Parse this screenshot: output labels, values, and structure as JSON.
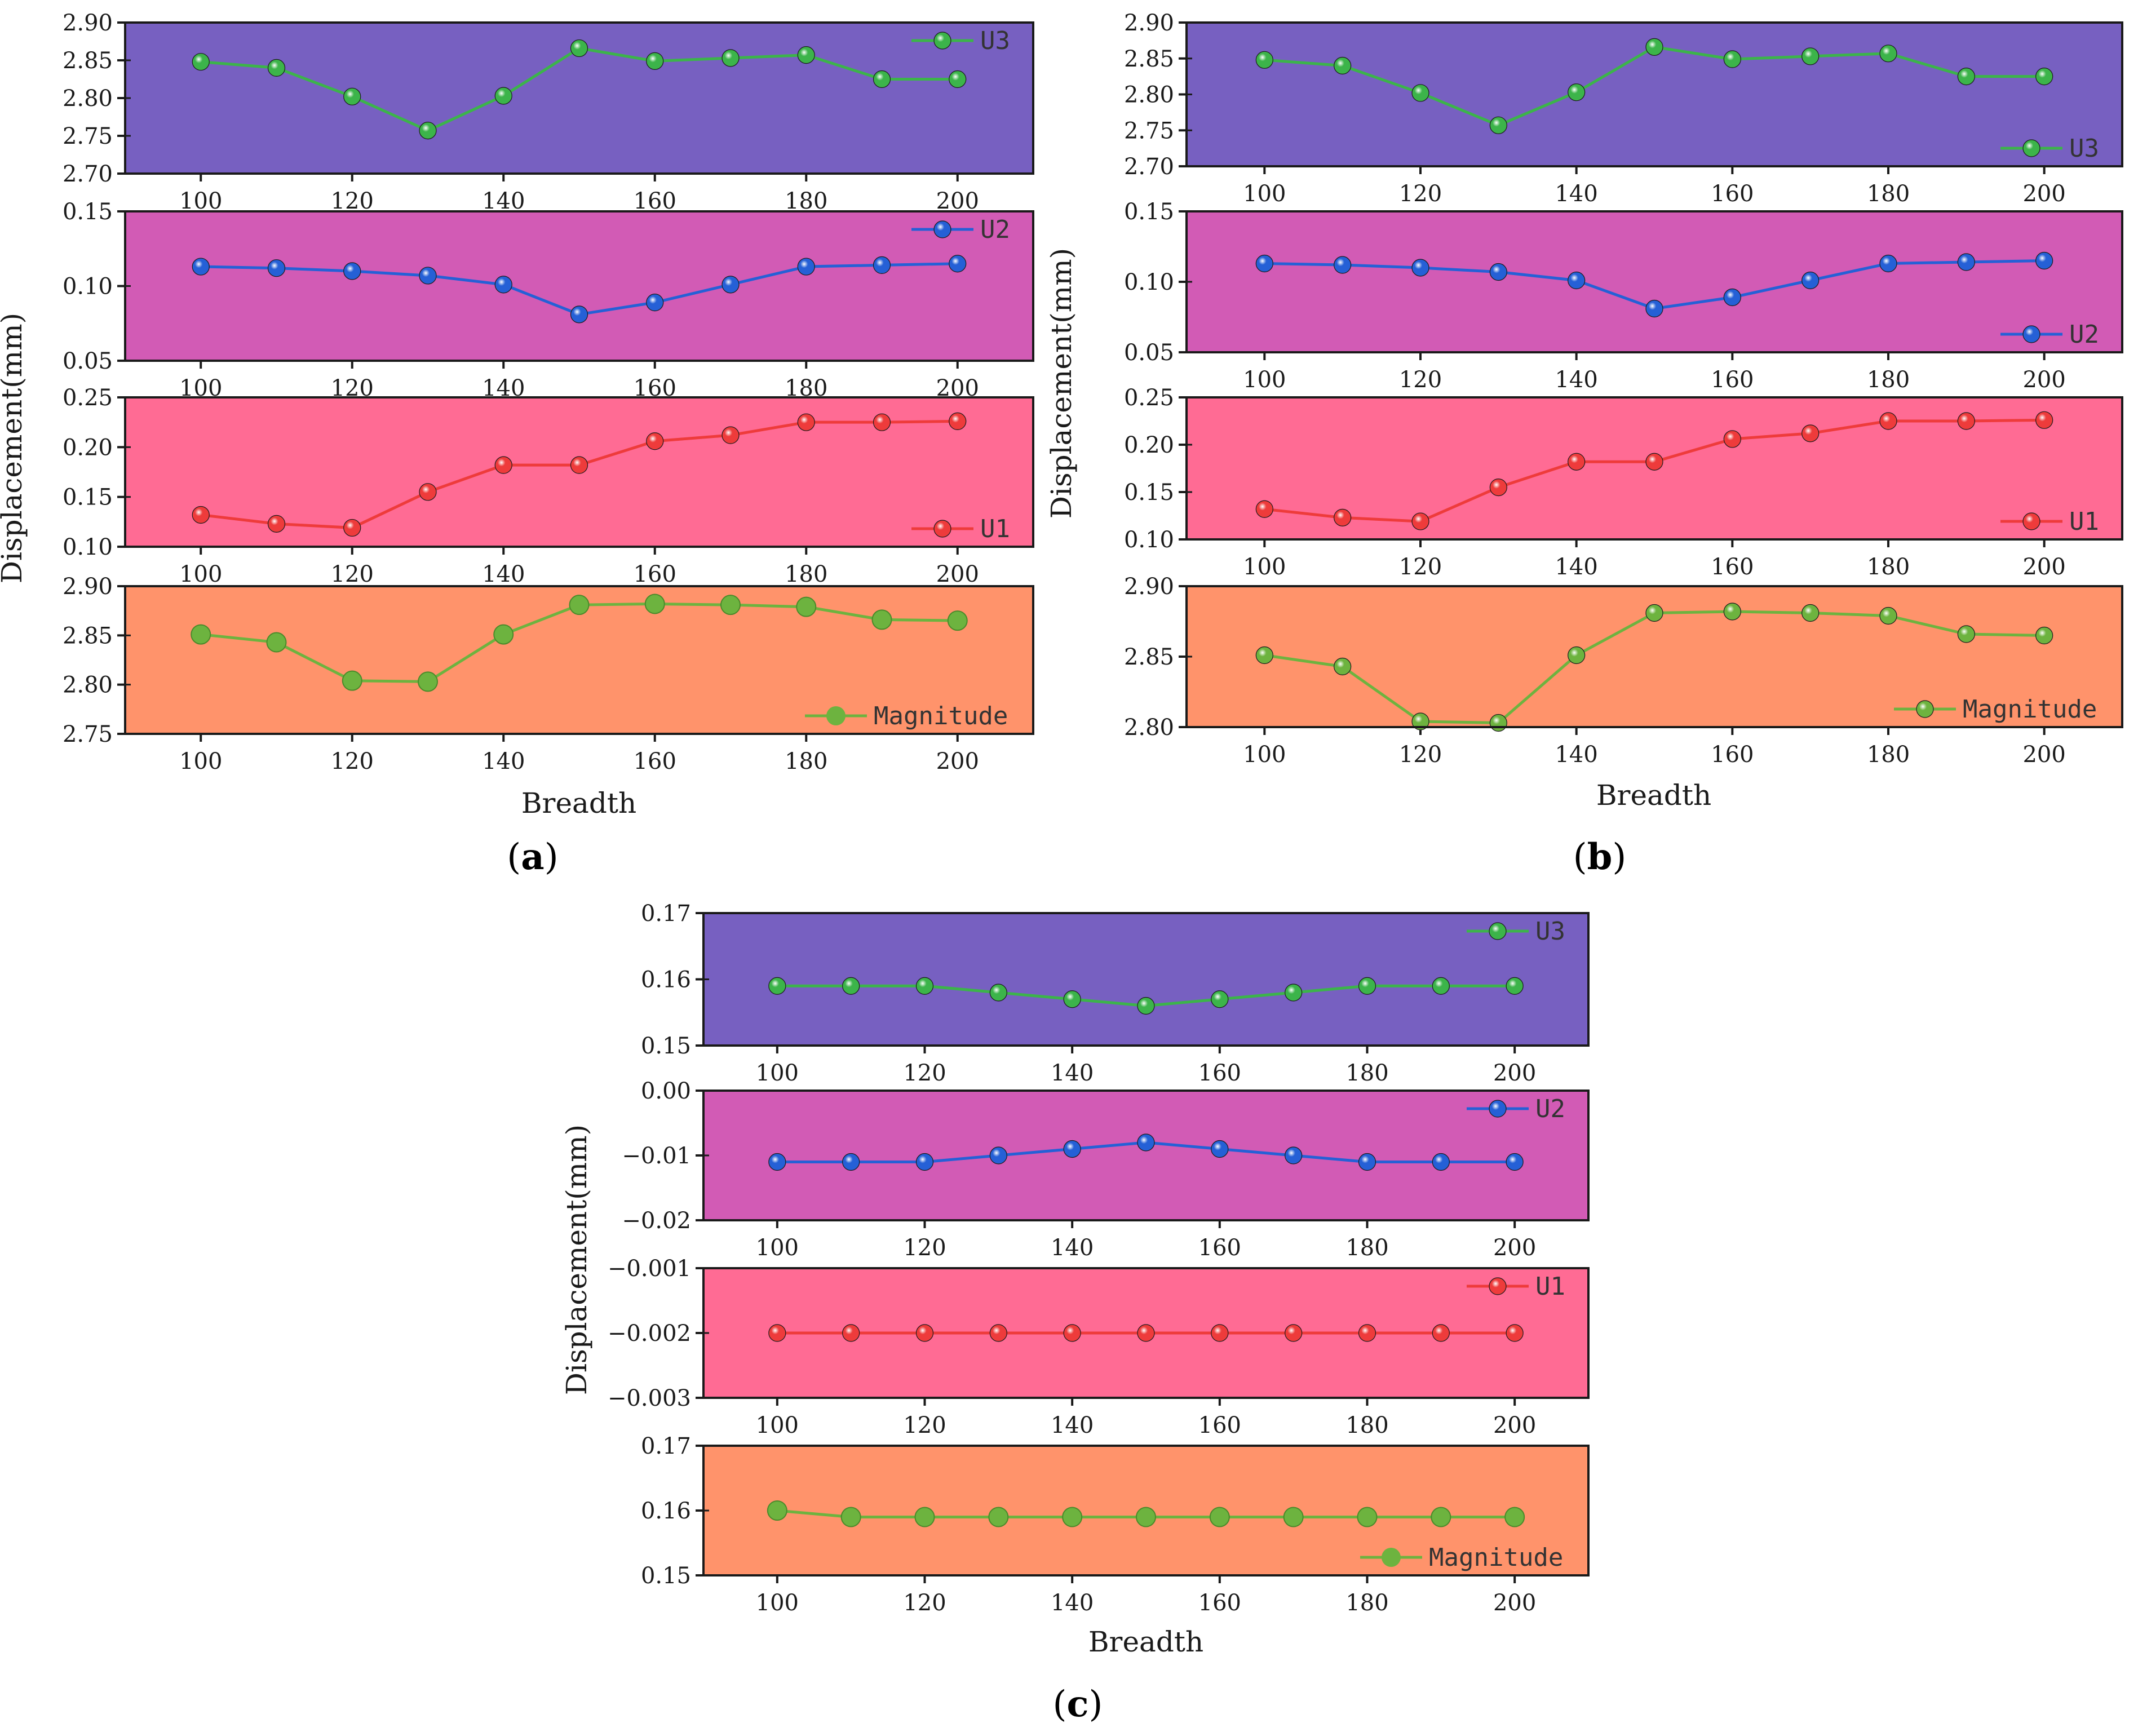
{
  "figure": {
    "x_title": "Breadth",
    "y_title": "Displacement(mm)"
  },
  "chart_data": [
    {
      "id": "a",
      "label": "a",
      "type": "line",
      "xlabel": "Breadth",
      "ylabel": "Displacement(mm)",
      "x": [
        100,
        110,
        120,
        130,
        140,
        150,
        160,
        170,
        180,
        190,
        200
      ],
      "xlim": [
        90,
        210
      ],
      "xticks": [
        100,
        120,
        140,
        160,
        180,
        200
      ],
      "panels": [
        {
          "series_name": "U3",
          "values": [
            2.848,
            2.84,
            2.802,
            2.757,
            2.803,
            2.866,
            2.849,
            2.853,
            2.857,
            2.825,
            2.825
          ],
          "ylim": [
            2.7,
            2.9
          ],
          "yticks": [
            "2.70",
            "2.75",
            "2.80",
            "2.85",
            "2.90"
          ],
          "legend_position": "top-right",
          "marker": "sphere"
        },
        {
          "series_name": "U2",
          "values": [
            0.113,
            0.112,
            0.11,
            0.107,
            0.101,
            0.081,
            0.089,
            0.101,
            0.113,
            0.114,
            0.115
          ],
          "ylim": [
            0.05,
            0.15
          ],
          "yticks": [
            "0.05",
            "0.10",
            "0.15"
          ],
          "legend_position": "top-right",
          "marker": "sphere"
        },
        {
          "series_name": "U1",
          "values": [
            0.132,
            0.123,
            0.119,
            0.155,
            0.182,
            0.182,
            0.206,
            0.212,
            0.225,
            0.225,
            0.226
          ],
          "ylim": [
            0.1,
            0.25
          ],
          "yticks": [
            "0.10",
            "0.15",
            "0.20",
            "0.25"
          ],
          "legend_position": "bottom-right",
          "marker": "sphere"
        },
        {
          "series_name": "Magnitude",
          "values": [
            2.851,
            2.843,
            2.804,
            2.803,
            2.851,
            2.881,
            2.882,
            2.881,
            2.879,
            2.866,
            2.865
          ],
          "ylim": [
            2.75,
            2.9
          ],
          "yticks": [
            "2.75",
            "2.80",
            "2.85",
            "2.90"
          ],
          "legend_position": "bottom-right",
          "marker": "filled"
        }
      ]
    },
    {
      "id": "b",
      "label": "b",
      "type": "line",
      "xlabel": "Breadth",
      "ylabel": "Displacement(mm)",
      "x": [
        100,
        110,
        120,
        130,
        140,
        150,
        160,
        170,
        180,
        190,
        200
      ],
      "xlim": [
        90,
        210
      ],
      "xticks": [
        100,
        120,
        140,
        160,
        180,
        200
      ],
      "panels": [
        {
          "series_name": "U3",
          "values": [
            2.848,
            2.84,
            2.802,
            2.757,
            2.803,
            2.866,
            2.849,
            2.853,
            2.857,
            2.825,
            2.825
          ],
          "ylim": [
            2.7,
            2.9
          ],
          "yticks": [
            "2.70",
            "2.75",
            "2.80",
            "2.85",
            "2.90"
          ],
          "legend_position": "bottom-right",
          "marker": "sphere"
        },
        {
          "series_name": "U2",
          "values": [
            0.113,
            0.112,
            0.11,
            0.107,
            0.101,
            0.081,
            0.089,
            0.101,
            0.113,
            0.114,
            0.115
          ],
          "ylim": [
            0.05,
            0.15
          ],
          "yticks": [
            "0.05",
            "0.10",
            "0.15"
          ],
          "legend_position": "bottom-right",
          "marker": "sphere"
        },
        {
          "series_name": "U1",
          "values": [
            0.132,
            0.123,
            0.119,
            0.155,
            0.182,
            0.182,
            0.206,
            0.212,
            0.225,
            0.225,
            0.226
          ],
          "ylim": [
            0.1,
            0.25
          ],
          "yticks": [
            "0.10",
            "0.15",
            "0.20",
            "0.25"
          ],
          "legend_position": "bottom-right",
          "marker": "sphere"
        },
        {
          "series_name": "Magnitude",
          "values": [
            2.851,
            2.843,
            2.804,
            2.803,
            2.851,
            2.881,
            2.882,
            2.881,
            2.879,
            2.866,
            2.865
          ],
          "ylim": [
            2.8,
            2.9
          ],
          "yticks": [
            "2.80",
            "2.85",
            "2.90"
          ],
          "legend_position": "bottom-right",
          "marker": "sphere"
        }
      ]
    },
    {
      "id": "c",
      "label": "c",
      "type": "line",
      "xlabel": "Breadth",
      "ylabel": "Displacement(mm)",
      "x": [
        100,
        110,
        120,
        130,
        140,
        150,
        160,
        170,
        180,
        190,
        200
      ],
      "xlim": [
        90,
        210
      ],
      "xticks": [
        100,
        120,
        140,
        160,
        180,
        200
      ],
      "panels": [
        {
          "series_name": "U3",
          "values": [
            0.159,
            0.159,
            0.159,
            0.158,
            0.157,
            0.156,
            0.157,
            0.158,
            0.159,
            0.159,
            0.159
          ],
          "ylim": [
            0.15,
            0.17
          ],
          "yticks": [
            "0.15",
            "0.16",
            "0.17"
          ],
          "legend_position": "top-right",
          "marker": "sphere"
        },
        {
          "series_name": "U2",
          "values": [
            -0.011,
            -0.011,
            -0.011,
            -0.01,
            -0.009,
            -0.008,
            -0.009,
            -0.01,
            -0.011,
            -0.011,
            -0.011
          ],
          "ylim": [
            -0.02,
            0.0
          ],
          "yticks": [
            "−0.02",
            "−0.01",
            "0.00"
          ],
          "legend_position": "top-right",
          "marker": "sphere"
        },
        {
          "series_name": "U1",
          "values": [
            -0.002,
            -0.002,
            -0.002,
            -0.002,
            -0.002,
            -0.002,
            -0.002,
            -0.002,
            -0.002,
            -0.002,
            -0.002
          ],
          "ylim": [
            -0.003,
            -0.001
          ],
          "yticks": [
            "−0.003",
            "−0.002",
            "−0.001"
          ],
          "legend_position": "top-right",
          "marker": "sphere"
        },
        {
          "series_name": "Magnitude",
          "values": [
            0.16,
            0.159,
            0.159,
            0.159,
            0.159,
            0.159,
            0.159,
            0.159,
            0.159,
            0.159,
            0.159
          ],
          "ylim": [
            0.15,
            0.17
          ],
          "yticks": [
            "0.15",
            "0.16",
            "0.17"
          ],
          "legend_position": "bottom-right",
          "marker": "filled"
        }
      ]
    }
  ],
  "colors": {
    "U3_bg": "#7760c1",
    "U2_bg": "#d25bb5",
    "U1_bg": "#ff6b94",
    "Magnitude_bg": "#ff936b",
    "U3_line": "#3cb44a",
    "U2_line": "#2560d6",
    "U1_line": "#ee3b3b",
    "Magnitude_line": "#6db33f"
  }
}
